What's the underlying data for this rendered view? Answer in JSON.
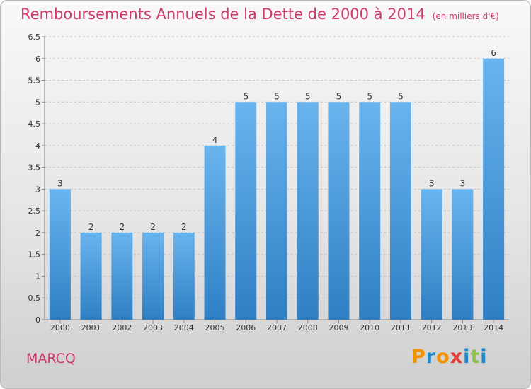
{
  "header": {
    "title": "Remboursements Annuels de la Dette de 2000 à 2014",
    "unit": "(en milliers d'€)"
  },
  "footer": {
    "commune": "MARCQ",
    "brand": "Proxiti",
    "brand_colors": [
      "#f39200",
      "#1e88c8",
      "#f39200",
      "#e53935",
      "#1e88c8",
      "#8bc34a",
      "#1e88c8"
    ]
  },
  "colors": {
    "title": "#cf3a6e",
    "bar_light": "#6ab4ee",
    "bar_dark": "#2e7fc4"
  },
  "chart_data": {
    "type": "bar",
    "categories": [
      "2000",
      "2001",
      "2002",
      "2003",
      "2004",
      "2005",
      "2006",
      "2007",
      "2008",
      "2009",
      "2010",
      "2011",
      "2012",
      "2013",
      "2014"
    ],
    "values": [
      3,
      2,
      2,
      2,
      2,
      4,
      5,
      5,
      5,
      5,
      5,
      5,
      3,
      3,
      6
    ],
    "data_labels": [
      "3",
      "2",
      "2",
      "2",
      "2",
      "4",
      "5",
      "5",
      "5",
      "5",
      "5",
      "5",
      "3",
      "3",
      "6"
    ],
    "ylim": [
      0,
      6.5
    ],
    "yticks": [
      "0",
      "0.5",
      "1",
      "1.5",
      "2",
      "2.5",
      "3",
      "3.5",
      "4",
      "4.5",
      "5",
      "5.5",
      "6",
      "6.5"
    ],
    "grid": true,
    "xlabel": "",
    "ylabel": ""
  }
}
